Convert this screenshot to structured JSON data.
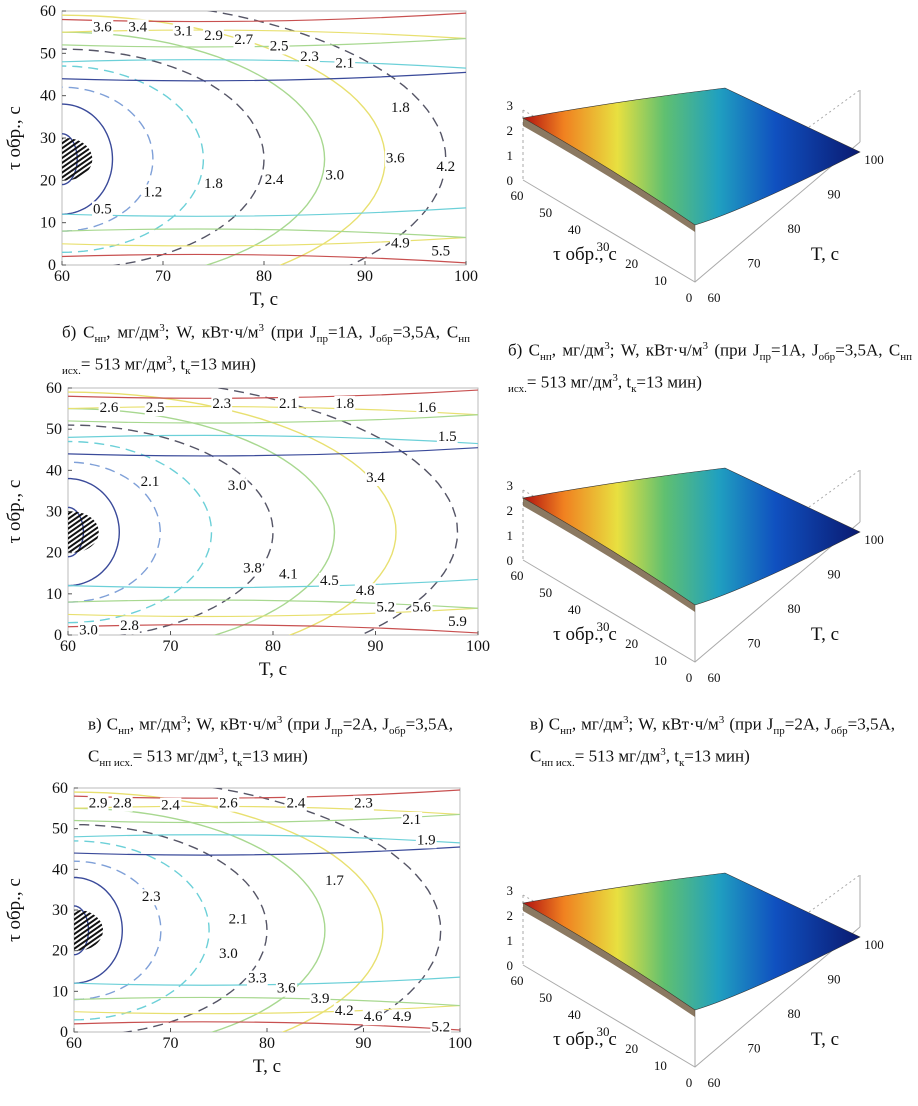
{
  "chart_data": [
    {
      "id": "contour-a",
      "type": "contour",
      "xlabel": "T, с",
      "ylabel": "τ обр., с",
      "xlim": [
        60,
        100
      ],
      "ylim": [
        0,
        60
      ],
      "xticks": [
        60,
        70,
        80,
        90,
        100
      ],
      "yticks": [
        0,
        10,
        20,
        30,
        40,
        50,
        60
      ],
      "solid_labels": [
        {
          "text": "3.6",
          "x": 64,
          "y": 56
        },
        {
          "text": "3.4",
          "x": 67.5,
          "y": 56
        },
        {
          "text": "3.1",
          "x": 72,
          "y": 55
        },
        {
          "text": "2.9",
          "x": 75,
          "y": 54
        },
        {
          "text": "2.7",
          "x": 78,
          "y": 53
        },
        {
          "text": "2.5",
          "x": 81.5,
          "y": 51.5
        },
        {
          "text": "2.3",
          "x": 84.5,
          "y": 49
        },
        {
          "text": "2.1",
          "x": 88,
          "y": 47.5
        },
        {
          "text": "0.5",
          "x": 64,
          "y": 13
        },
        {
          "text": "1.2",
          "x": 69,
          "y": 17
        },
        {
          "text": "1.8",
          "x": 75,
          "y": 19
        },
        {
          "text": "2.4",
          "x": 81,
          "y": 20
        },
        {
          "text": "3.0",
          "x": 87,
          "y": 21
        },
        {
          "text": "3.6",
          "x": 93,
          "y": 25
        },
        {
          "text": "4.2",
          "x": 98,
          "y": 23
        }
      ],
      "dashed_labels": [
        {
          "text": "1.8",
          "x": 93.5,
          "y": 37
        },
        {
          "text": "4.9",
          "x": 93.5,
          "y": 5
        },
        {
          "text": "5.5",
          "x": 97.5,
          "y": 3
        }
      ]
    },
    {
      "id": "surface-a",
      "type": "surface3d",
      "xlabel": "T, с",
      "ylabel": "τ обр., с",
      "x_ticks": [
        60,
        70,
        80,
        90,
        100
      ],
      "y_ticks": [
        60,
        50,
        40,
        30,
        20,
        10,
        0
      ],
      "z_ticks": [
        0,
        1,
        2,
        3
      ]
    },
    {
      "id": "contour-b",
      "type": "contour",
      "xlabel": "T, с",
      "ylabel": "τ обр., с",
      "xlim": [
        60,
        100
      ],
      "ylim": [
        0,
        60
      ],
      "xticks": [
        60,
        70,
        80,
        90,
        100
      ],
      "yticks": [
        0,
        10,
        20,
        30,
        40,
        50,
        60
      ],
      "solid_labels": [
        {
          "text": "2.6",
          "x": 64,
          "y": 55
        },
        {
          "text": "2.5",
          "x": 68.5,
          "y": 55
        },
        {
          "text": "2.3",
          "x": 75,
          "y": 56
        },
        {
          "text": "2.1",
          "x": 81.5,
          "y": 56
        },
        {
          "text": "1.8",
          "x": 87,
          "y": 56
        },
        {
          "text": "1.6",
          "x": 95,
          "y": 55
        },
        {
          "text": "1.5",
          "x": 97,
          "y": 48
        },
        {
          "text": "2.1",
          "x": 68,
          "y": 37
        },
        {
          "text": "3.0",
          "x": 76.5,
          "y": 36
        },
        {
          "text": "3.4",
          "x": 90,
          "y": 38
        },
        {
          "text": "3.8",
          "x": 78,
          "y": 16
        },
        {
          "text": "4.1",
          "x": 81.5,
          "y": 14.5
        },
        {
          "text": "4.5",
          "x": 85.5,
          "y": 13
        },
        {
          "text": "4.8",
          "x": 89,
          "y": 10.5
        },
        {
          "text": "5.2",
          "x": 91,
          "y": 6.5
        },
        {
          "text": "5.6",
          "x": 94.5,
          "y": 6.5
        },
        {
          "text": "5.9",
          "x": 98,
          "y": 3
        },
        {
          "text": "3.0",
          "x": 62,
          "y": 1
        },
        {
          "text": "2.8",
          "x": 66,
          "y": 2
        }
      ],
      "dashed_labels": []
    },
    {
      "id": "surface-b",
      "type": "surface3d",
      "xlabel": "T, с",
      "ylabel": "τ обр., с",
      "x_ticks": [
        60,
        70,
        80,
        90,
        100
      ],
      "y_ticks": [
        60,
        50,
        40,
        30,
        20,
        10,
        0
      ],
      "z_ticks": [
        0,
        1,
        2,
        3
      ]
    },
    {
      "id": "contour-c",
      "type": "contour",
      "xlabel": "T, с",
      "ylabel": "τ обр., с",
      "xlim": [
        60,
        100
      ],
      "ylim": [
        0,
        60
      ],
      "xticks": [
        60,
        70,
        80,
        90,
        100
      ],
      "yticks": [
        0,
        10,
        20,
        30,
        40,
        50,
        60
      ],
      "solid_labels": [
        {
          "text": "2.9",
          "x": 62.5,
          "y": 56
        },
        {
          "text": "2.8",
          "x": 65,
          "y": 56
        },
        {
          "text": "2.4",
          "x": 70,
          "y": 55.5
        },
        {
          "text": "2.6",
          "x": 76,
          "y": 56
        },
        {
          "text": "2.4",
          "x": 83,
          "y": 56
        },
        {
          "text": "2.3",
          "x": 90,
          "y": 56
        },
        {
          "text": "2.1",
          "x": 95,
          "y": 52
        },
        {
          "text": "1.9",
          "x": 96.5,
          "y": 47
        },
        {
          "text": "2.3",
          "x": 68,
          "y": 33
        },
        {
          "text": "2.1",
          "x": 77,
          "y": 27.5
        },
        {
          "text": "1.7",
          "x": 87,
          "y": 37
        },
        {
          "text": "3.0",
          "x": 76,
          "y": 19
        },
        {
          "text": "3.3",
          "x": 79,
          "y": 13
        },
        {
          "text": "3.6",
          "x": 82,
          "y": 10.5
        },
        {
          "text": "3.9",
          "x": 85.5,
          "y": 8
        },
        {
          "text": "4.2",
          "x": 88,
          "y": 5
        },
        {
          "text": "4.6",
          "x": 91,
          "y": 3.5
        },
        {
          "text": "4.9",
          "x": 94,
          "y": 3.5
        },
        {
          "text": "5.2",
          "x": 98,
          "y": 1
        }
      ],
      "dashed_labels": []
    },
    {
      "id": "surface-c",
      "type": "surface3d",
      "xlabel": "T, с",
      "ylabel": "τ обр., с",
      "x_ticks": [
        60,
        70,
        80,
        90,
        100
      ],
      "y_ticks": [
        60,
        50,
        40,
        30,
        20,
        10,
        0
      ],
      "z_ticks": [
        0,
        1,
        2,
        3
      ]
    }
  ],
  "captions": {
    "b_left": {
      "prefix": "б) С",
      "sub1": "нп",
      "t1": ", мг/дм",
      "sup1": "3",
      "t2": "; W, кВт·ч/м",
      "sup2": "3",
      "t3": " (при J",
      "sub2": "пр",
      "t4": "=1А, J",
      "sub3": "обр",
      "t5": "=3,5А, С",
      "sub4": "нп исх.",
      "t6": "= 513 мг/дм",
      "sup3": "3",
      "t7": ", t",
      "sub5": "к",
      "t8": "=13 мин)"
    },
    "b_right": {
      "prefix": "б) С",
      "sub1": "нп",
      "t1": ", мг/дм",
      "sup1": "3",
      "t2": "; W, кВт·ч/м",
      "sup2": "3",
      "t3": " (при J",
      "sub2": "пр",
      "t4": "=1А, J",
      "sub3": "обр",
      "t5": "=3,5А, С",
      "sub4": "нп исх.",
      "t6": "= 513 мг/дм",
      "sup3": "3",
      "t7": ", t",
      "sub5": "к",
      "t8": "=13 мин)"
    },
    "c_left": {
      "prefix": "в) С",
      "sub1": "нп",
      "t1": ", мг/дм",
      "sup1": "3",
      "t2": "; W, кВт·ч/м",
      "sup2": "3",
      "t3": " (при J",
      "sub2": "пр",
      "t4": "=2А, J",
      "sub3": "обр",
      "t5": "=3,5А, С",
      "sub4": "нп исх.",
      "t6": "= 513 мг/дм",
      "sup3": "3",
      "t7": ", t",
      "sub5": "к",
      "t8": "=13 мин)"
    },
    "c_right": {
      "prefix": "в) С",
      "sub1": "нп",
      "t1": ", мг/дм",
      "sup1": "3",
      "t2": "; W, кВт·ч/м",
      "sup2": "3",
      "t3": " (при J",
      "sub2": "пр",
      "t4": "=2А, J",
      "sub3": "обр",
      "t5": "=3,5А, С",
      "sub4": "нп исх.",
      "t6": "= 513 мг/дм",
      "sup3": "3",
      "t7": ", t",
      "sub5": "к",
      "t8": "=13 мин)"
    }
  },
  "colors": {
    "blue_dark": "#3a4a9a",
    "cyan": "#6cd0d8",
    "green": "#a8d890",
    "yellow": "#e8e070",
    "red": "#c85050",
    "grey_dash": "#555566"
  }
}
